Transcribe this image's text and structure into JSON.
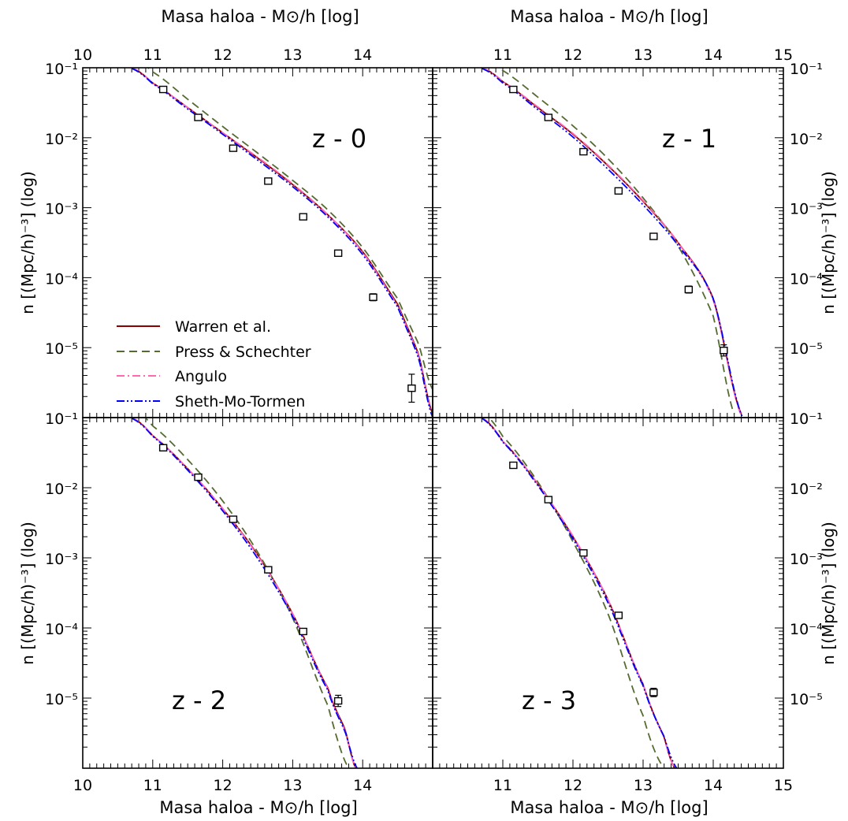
{
  "figure": {
    "top_axis_label": "Masa haloa - M⊙/h [log]",
    "bottom_axis_label": "Masa haloa - M⊙/h  [log]",
    "y_axis_label": "n [(Mpc/h)⁻³] (log)",
    "x_tick_labels_left": [
      "10",
      "11",
      "12",
      "13",
      "14"
    ],
    "x_tick_labels_right": [
      "11",
      "12",
      "13",
      "14",
      "15"
    ],
    "y_tick_labels_top_row": [
      "10⁻¹",
      "10⁻²",
      "10⁻³",
      "10⁻⁴",
      "10⁻⁵",
      "10⁻¹"
    ],
    "y_tick_labels_bottom_row": [
      "10⁻¹",
      "10⁻²",
      "10⁻³",
      "10⁻⁴",
      "10⁻⁵"
    ],
    "legend": [
      {
        "label": "Warren et al.",
        "color": "#8b0000",
        "dash": "solid"
      },
      {
        "label": "Press & Schechter",
        "color": "#556b2f",
        "dash": "dashed"
      },
      {
        "label": "Angulo",
        "color": "#ff69b4",
        "dash": "dash-dot"
      },
      {
        "label": "Sheth-Mo-Tormen",
        "color": "#0000ff",
        "dash": "dash-dot-dot"
      }
    ],
    "legend_placement": "lower-left of z - 0 panel"
  },
  "chart_data": [
    {
      "type": "line",
      "panel": "top-left",
      "annotation": "z - 0",
      "x_axis": "log10 M (Msun/h)",
      "y_axis": "log10 n ((Mpc/h)^-3)",
      "xlim": [
        10,
        15
      ],
      "ylim": [
        -6,
        -1
      ],
      "series": [
        {
          "name": "Warren et al.",
          "x": [
            10.7,
            11.0,
            11.5,
            12.0,
            12.5,
            13.0,
            13.5,
            14.0,
            14.5,
            14.8,
            15.0
          ],
          "y": [
            -1.0,
            -1.22,
            -1.57,
            -1.93,
            -2.29,
            -2.67,
            -3.1,
            -3.63,
            -4.38,
            -5.1,
            -5.95
          ]
        },
        {
          "name": "Press & Schechter",
          "x": [
            10.7,
            11.0,
            11.5,
            12.0,
            12.5,
            13.0,
            13.5,
            14.0,
            14.5,
            14.8,
            15.0
          ],
          "y": [
            -0.86,
            -1.06,
            -1.45,
            -1.84,
            -2.22,
            -2.61,
            -3.03,
            -3.57,
            -4.3,
            -4.95,
            -5.6
          ]
        },
        {
          "name": "Angulo",
          "x": [
            10.7,
            11.0,
            11.5,
            12.0,
            12.5,
            13.0,
            13.5,
            14.0,
            14.5,
            14.8,
            15.0
          ],
          "y": [
            -1.0,
            -1.22,
            -1.57,
            -1.93,
            -2.28,
            -2.66,
            -3.1,
            -3.64,
            -4.4,
            -5.12,
            -5.97
          ]
        },
        {
          "name": "Sheth-Mo-Tormen",
          "x": [
            10.7,
            11.0,
            11.5,
            12.0,
            12.5,
            13.0,
            13.5,
            14.0,
            14.5,
            14.8,
            15.0
          ],
          "y": [
            -1.01,
            -1.23,
            -1.59,
            -1.95,
            -2.32,
            -2.7,
            -3.13,
            -3.67,
            -4.42,
            -5.15,
            -6.0
          ]
        }
      ],
      "points": {
        "x": [
          11.15,
          11.65,
          12.15,
          12.65,
          13.15,
          13.65,
          14.15,
          14.7
        ],
        "y": [
          -1.31,
          -1.71,
          -2.15,
          -2.62,
          -3.13,
          -3.65,
          -4.28,
          -5.58
        ],
        "yerr": [
          0.04,
          0.04,
          0.04,
          0.04,
          0.04,
          0.04,
          0.05,
          0.2
        ]
      }
    },
    {
      "type": "line",
      "panel": "top-right",
      "annotation": "z - 1",
      "x_axis": "log10 M (Msun/h)",
      "y_axis": "log10 n ((Mpc/h)^-3)",
      "xlim": [
        10,
        15
      ],
      "ylim": [
        -6,
        -1
      ],
      "series": [
        {
          "name": "Warren et al.",
          "x": [
            10.7,
            11.0,
            11.5,
            12.0,
            12.5,
            13.0,
            13.5,
            14.0,
            14.4
          ],
          "y": [
            -1.0,
            -1.2,
            -1.57,
            -1.95,
            -2.4,
            -2.91,
            -3.5,
            -4.3,
            -5.95
          ]
        },
        {
          "name": "Press & Schechter",
          "x": [
            10.7,
            11.0,
            11.5,
            12.0,
            12.5,
            13.0,
            13.5,
            14.0,
            14.3
          ],
          "y": [
            -0.82,
            -1.04,
            -1.42,
            -1.83,
            -2.3,
            -2.86,
            -3.55,
            -4.55,
            -5.95
          ]
        },
        {
          "name": "Angulo",
          "x": [
            10.7,
            11.0,
            11.5,
            12.0,
            12.5,
            13.0,
            13.5,
            14.0,
            14.4
          ],
          "y": [
            -1.0,
            -1.2,
            -1.56,
            -1.94,
            -2.39,
            -2.9,
            -3.5,
            -4.32,
            -5.97
          ]
        },
        {
          "name": "Sheth-Mo-Tormen",
          "x": [
            10.7,
            11.0,
            11.5,
            12.0,
            12.5,
            13.0,
            13.5,
            14.0,
            14.42
          ],
          "y": [
            -1.01,
            -1.22,
            -1.6,
            -1.99,
            -2.45,
            -2.96,
            -3.54,
            -4.3,
            -6.0
          ]
        }
      ],
      "points": {
        "x": [
          11.15,
          11.65,
          12.15,
          12.65,
          13.15,
          13.65,
          14.15
        ],
        "y": [
          -1.31,
          -1.71,
          -2.2,
          -2.76,
          -3.41,
          -4.17,
          -5.04
        ],
        "yerr": [
          0.04,
          0.04,
          0.04,
          0.04,
          0.04,
          0.05,
          0.08
        ]
      }
    },
    {
      "type": "line",
      "panel": "bottom-left",
      "annotation": "z - 2",
      "x_axis": "log10 M (Msun/h)",
      "y_axis": "log10 n ((Mpc/h)^-3)",
      "xlim": [
        10,
        15
      ],
      "ylim": [
        -6,
        -1
      ],
      "series": [
        {
          "name": "Warren et al.",
          "x": [
            10.7,
            11.0,
            11.5,
            12.0,
            12.5,
            13.0,
            13.5,
            13.75,
            13.9
          ],
          "y": [
            -1.0,
            -1.26,
            -1.73,
            -2.3,
            -2.96,
            -3.8,
            -4.85,
            -5.45,
            -6.0
          ]
        },
        {
          "name": "Press & Schechter",
          "x": [
            10.7,
            11.0,
            11.5,
            12.0,
            12.5,
            13.0,
            13.5,
            13.8
          ],
          "y": [
            -0.86,
            -1.12,
            -1.6,
            -2.19,
            -2.92,
            -3.86,
            -5.1,
            -6.0
          ]
        },
        {
          "name": "Angulo",
          "x": [
            10.7,
            11.0,
            11.5,
            12.0,
            12.5,
            13.0,
            13.5,
            13.75,
            13.9
          ],
          "y": [
            -1.0,
            -1.26,
            -1.73,
            -2.3,
            -2.97,
            -3.8,
            -4.86,
            -5.47,
            -6.0
          ]
        },
        {
          "name": "Sheth-Mo-Tormen",
          "x": [
            10.7,
            11.0,
            11.5,
            12.0,
            12.5,
            13.0,
            13.5,
            13.75,
            13.92
          ],
          "y": [
            -1.01,
            -1.27,
            -1.75,
            -2.33,
            -3.01,
            -3.84,
            -4.88,
            -5.48,
            -6.0
          ]
        }
      ],
      "points": {
        "x": [
          11.15,
          11.65,
          12.15,
          12.65,
          13.15,
          13.65
        ],
        "y": [
          -1.43,
          -1.85,
          -2.45,
          -3.17,
          -4.05,
          -5.04
        ],
        "yerr": [
          0.04,
          0.04,
          0.04,
          0.04,
          0.04,
          0.08
        ]
      }
    },
    {
      "type": "line",
      "panel": "bottom-right",
      "annotation": "z - 3",
      "x_axis": "log10 M (Msun/h)",
      "y_axis": "log10 n ((Mpc/h)^-3)",
      "xlim": [
        10,
        15
      ],
      "ylim": [
        -6,
        -1
      ],
      "series": [
        {
          "name": "Warren et al.",
          "x": [
            10.7,
            11.0,
            11.5,
            12.0,
            12.5,
            13.0,
            13.3,
            13.45
          ],
          "y": [
            -1.0,
            -1.34,
            -1.95,
            -2.7,
            -3.6,
            -4.8,
            -5.55,
            -6.0
          ]
        },
        {
          "name": "Press & Schechter",
          "x": [
            10.7,
            11.0,
            11.5,
            12.0,
            12.5,
            13.0,
            13.3
          ],
          "y": [
            -0.92,
            -1.27,
            -1.92,
            -2.77,
            -3.8,
            -5.25,
            -6.0
          ]
        },
        {
          "name": "Angulo",
          "x": [
            10.7,
            11.0,
            11.5,
            12.0,
            12.5,
            13.0,
            13.3,
            13.45
          ],
          "y": [
            -1.0,
            -1.34,
            -1.95,
            -2.69,
            -3.6,
            -4.8,
            -5.56,
            -6.0
          ]
        },
        {
          "name": "Sheth-Mo-Tormen",
          "x": [
            10.7,
            11.0,
            11.5,
            12.0,
            12.5,
            13.0,
            13.3,
            13.48
          ],
          "y": [
            -1.01,
            -1.35,
            -1.97,
            -2.73,
            -3.64,
            -4.82,
            -5.55,
            -6.0
          ]
        }
      ],
      "points": {
        "x": [
          11.15,
          11.65,
          12.15,
          12.65,
          13.15
        ],
        "y": [
          -1.68,
          -2.17,
          -2.93,
          -3.82,
          -4.92
        ],
        "yerr": [
          0.04,
          0.04,
          0.04,
          0.04,
          0.06
        ]
      }
    }
  ]
}
